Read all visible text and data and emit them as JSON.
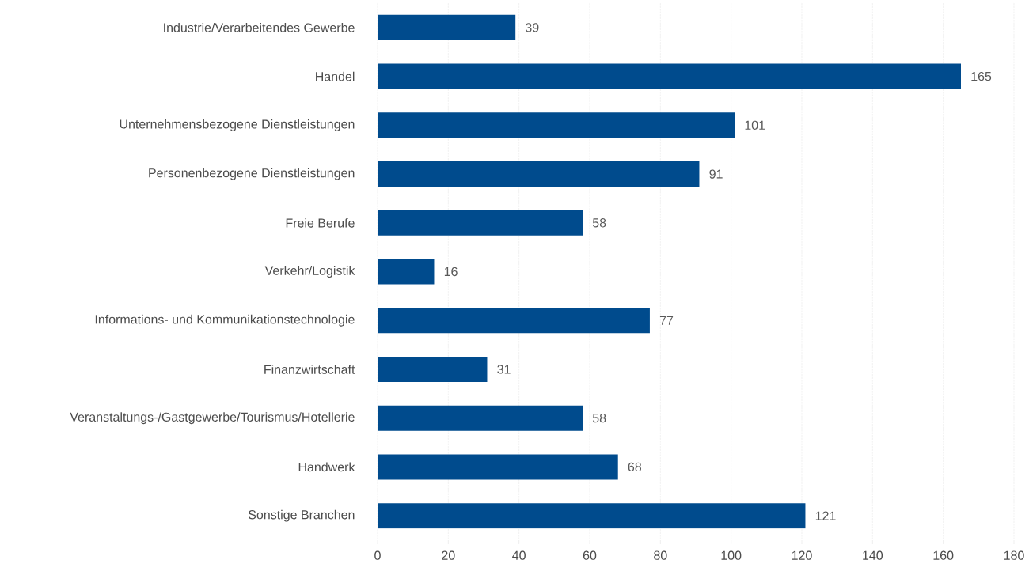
{
  "chart_data": {
    "type": "bar",
    "orientation": "horizontal",
    "categories": [
      "Industrie/Verarbeitendes Gewerbe",
      "Handel",
      "Unternehmensbezogene Dienstleistungen",
      "Personenbezogene Dienstleistungen",
      "Freie Berufe",
      "Verkehr/Logistik",
      "Informations- und Kommunikationstechnologie",
      "Finanzwirtschaft",
      "Veranstaltungs-/Gastgewerbe/Tourismus/Hotellerie",
      "Handwerk",
      "Sonstige Branchen"
    ],
    "values": [
      39,
      165,
      101,
      91,
      58,
      16,
      77,
      31,
      58,
      68,
      121
    ],
    "color": "#004b8d",
    "data_labels": true,
    "grid": "x",
    "xlim": [
      0,
      180
    ],
    "xticks": [
      0,
      20,
      40,
      60,
      80,
      100,
      120,
      140,
      160,
      180
    ]
  }
}
